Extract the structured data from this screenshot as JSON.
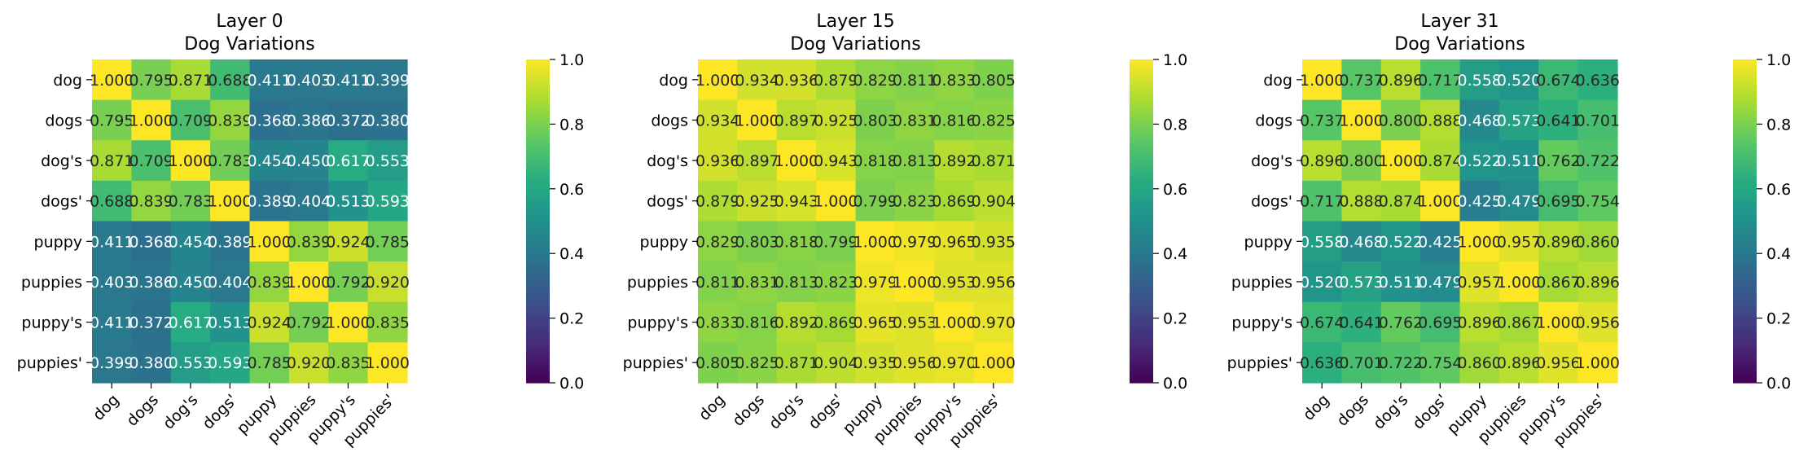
{
  "chart_data": [
    {
      "type": "heatmap",
      "title": "Layer 0",
      "subtitle": "Dog Variations",
      "labels": [
        "dog",
        "dogs",
        "dog's",
        "dogs'",
        "puppy",
        "puppies",
        "puppy's",
        "puppies'"
      ],
      "values": [
        [
          1.0,
          0.795,
          0.871,
          0.688,
          0.411,
          0.403,
          0.411,
          0.399
        ],
        [
          0.795,
          1.0,
          0.709,
          0.839,
          0.368,
          0.386,
          0.372,
          0.38
        ],
        [
          0.871,
          0.709,
          1.0,
          0.783,
          0.454,
          0.45,
          0.617,
          0.553
        ],
        [
          0.688,
          0.839,
          0.783,
          1.0,
          0.389,
          0.404,
          0.513,
          0.593
        ],
        [
          0.411,
          0.368,
          0.454,
          0.389,
          1.0,
          0.839,
          0.924,
          0.785
        ],
        [
          0.403,
          0.386,
          0.45,
          0.404,
          0.839,
          1.0,
          0.792,
          0.92
        ],
        [
          0.411,
          0.372,
          0.617,
          0.513,
          0.924,
          0.792,
          1.0,
          0.835
        ],
        [
          0.399,
          0.38,
          0.553,
          0.593,
          0.785,
          0.92,
          0.835,
          1.0
        ]
      ],
      "colorbar": {
        "min": 0.0,
        "max": 1.0,
        "ticks": [
          "0.0",
          "0.2",
          "0.4",
          "0.6",
          "0.8",
          "1.0"
        ],
        "colormap": "viridis"
      }
    },
    {
      "type": "heatmap",
      "title": "Layer 15",
      "subtitle": "Dog Variations",
      "labels": [
        "dog",
        "dogs",
        "dog's",
        "dogs'",
        "puppy",
        "puppies",
        "puppy's",
        "puppies'"
      ],
      "values": [
        [
          1.0,
          0.934,
          0.936,
          0.879,
          0.829,
          0.811,
          0.833,
          0.805
        ],
        [
          0.934,
          1.0,
          0.897,
          0.925,
          0.803,
          0.831,
          0.816,
          0.825
        ],
        [
          0.936,
          0.897,
          1.0,
          0.943,
          0.818,
          0.813,
          0.892,
          0.871
        ],
        [
          0.879,
          0.925,
          0.943,
          1.0,
          0.799,
          0.823,
          0.869,
          0.904
        ],
        [
          0.829,
          0.803,
          0.818,
          0.799,
          1.0,
          0.979,
          0.965,
          0.935
        ],
        [
          0.811,
          0.831,
          0.813,
          0.823,
          0.979,
          1.0,
          0.953,
          0.956
        ],
        [
          0.833,
          0.816,
          0.892,
          0.869,
          0.965,
          0.953,
          1.0,
          0.97
        ],
        [
          0.805,
          0.825,
          0.871,
          0.904,
          0.935,
          0.956,
          0.97,
          1.0
        ]
      ],
      "colorbar": {
        "min": 0.0,
        "max": 1.0,
        "ticks": [
          "0.0",
          "0.2",
          "0.4",
          "0.6",
          "0.8",
          "1.0"
        ],
        "colormap": "viridis"
      }
    },
    {
      "type": "heatmap",
      "title": "Layer 31",
      "subtitle": "Dog Variations",
      "labels": [
        "dog",
        "dogs",
        "dog's",
        "dogs'",
        "puppy",
        "puppies",
        "puppy's",
        "puppies'"
      ],
      "values": [
        [
          1.0,
          0.737,
          0.896,
          0.717,
          0.558,
          0.52,
          0.674,
          0.636
        ],
        [
          0.737,
          1.0,
          0.8,
          0.888,
          0.468,
          0.573,
          0.641,
          0.701
        ],
        [
          0.896,
          0.8,
          1.0,
          0.874,
          0.522,
          0.511,
          0.762,
          0.722
        ],
        [
          0.717,
          0.888,
          0.874,
          1.0,
          0.425,
          0.479,
          0.695,
          0.754
        ],
        [
          0.558,
          0.468,
          0.522,
          0.425,
          1.0,
          0.957,
          0.896,
          0.86
        ],
        [
          0.52,
          0.573,
          0.511,
          0.479,
          0.957,
          1.0,
          0.867,
          0.896
        ],
        [
          0.674,
          0.641,
          0.762,
          0.695,
          0.896,
          0.867,
          1.0,
          0.956
        ],
        [
          0.636,
          0.701,
          0.722,
          0.754,
          0.86,
          0.896,
          0.956,
          1.0
        ]
      ],
      "colorbar": {
        "min": 0.0,
        "max": 1.0,
        "ticks": [
          "0.0",
          "0.2",
          "0.4",
          "0.6",
          "0.8",
          "1.0"
        ],
        "colormap": "viridis"
      }
    }
  ]
}
